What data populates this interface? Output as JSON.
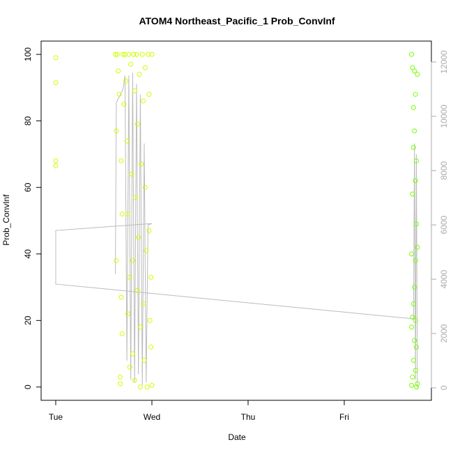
{
  "chart_data": {
    "type": "scatter",
    "title": "ATOM4 Northeast_Pacific_1 Prob_ConvInf",
    "x_label": "Date",
    "y_label": "Prob_ConvInf",
    "xlim": [
      -0.152,
      3.906
    ],
    "xticks": [
      {
        "value": 0,
        "label": "Tue"
      },
      {
        "value": 1,
        "label": "Wed"
      },
      {
        "value": 2,
        "label": "Thu"
      },
      {
        "value": 3,
        "label": "Fri"
      }
    ],
    "ylim": [
      -4,
      104
    ],
    "yticks": [
      0,
      20,
      40,
      60,
      80,
      100
    ],
    "y2lim": [
      -460,
      12770
    ],
    "y2ticks": [
      0,
      2000,
      4000,
      6000,
      8000,
      10000,
      12000
    ],
    "series": [
      {
        "color": "#ccff00",
        "x": [
          0,
          0,
          0,
          0,
          0.62,
          0.63,
          0.63,
          0.64,
          0.65,
          0.66,
          0.67,
          0.67,
          0.68,
          0.68,
          0.69,
          0.69,
          0.7,
          0.71,
          0.72,
          0.73,
          0.74,
          0.75,
          0.75,
          0.76,
          0.77,
          0.77,
          0.78,
          0.79,
          0.8,
          0.8,
          0.81,
          0.82,
          0.82,
          0.83,
          0.84,
          0.85,
          0.85,
          0.86,
          0.87,
          0.88,
          0.88,
          0.89,
          0.9,
          0.91,
          0.91,
          0.92,
          0.93,
          0.93,
          0.94,
          0.95,
          0.96,
          0.97,
          0.97,
          0.98,
          0.99,
          1.0,
          1.0,
          0.99
        ],
        "values": [
          99,
          91.5,
          68,
          66.5,
          100,
          77,
          38,
          100,
          95,
          88,
          3,
          1,
          68,
          27,
          16,
          52,
          100,
          85,
          100,
          92,
          74,
          52,
          22,
          100,
          6,
          33,
          97,
          64,
          38,
          10,
          100,
          89,
          2,
          57,
          100,
          79,
          29,
          45,
          94,
          18,
          0,
          67,
          100,
          86,
          25,
          8,
          96,
          60,
          41,
          0,
          100,
          88,
          47,
          20,
          33,
          100,
          0.5,
          12
        ]
      },
      {
        "color": "#77ff00",
        "x": [
          3.7,
          3.71,
          3.72,
          3.71,
          3.7,
          3.72,
          3.71,
          3.7,
          3.72,
          3.71,
          3.7,
          3.73,
          3.74,
          3.73,
          3.74,
          3.75,
          3.74,
          3.73,
          3.74,
          3.75,
          3.74,
          3.75,
          3.76,
          3.75,
          3.76,
          3.76,
          3.72,
          3.73
        ],
        "values": [
          100,
          96,
          72,
          58,
          40,
          25,
          21,
          18,
          8,
          3,
          0.5,
          95,
          88,
          77,
          62,
          49,
          38,
          30,
          20,
          12,
          5,
          0,
          94,
          68,
          42,
          1,
          84,
          14
        ]
      },
      {
        "type": "line",
        "axis": "y2",
        "color": "#bbbbbb",
        "x": [
          0.62,
          0.63,
          0.7,
          0.72,
          0.74,
          0.76,
          0.78,
          0.8,
          0.82,
          0.84,
          0.86,
          0.88,
          0.9,
          0.92,
          0.94,
          0.96,
          1.0,
          0,
          0,
          3.72,
          3.73,
          3.74,
          3.75,
          3.76
        ],
        "values": [
          4200,
          10500,
          11000,
          11500,
          1000,
          11500,
          300,
          11600,
          200,
          11200,
          500,
          10800,
          100,
          9000,
          200,
          6000,
          6050,
          5795,
          3820,
          2540,
          9000,
          300,
          8600,
          0
        ]
      }
    ]
  }
}
